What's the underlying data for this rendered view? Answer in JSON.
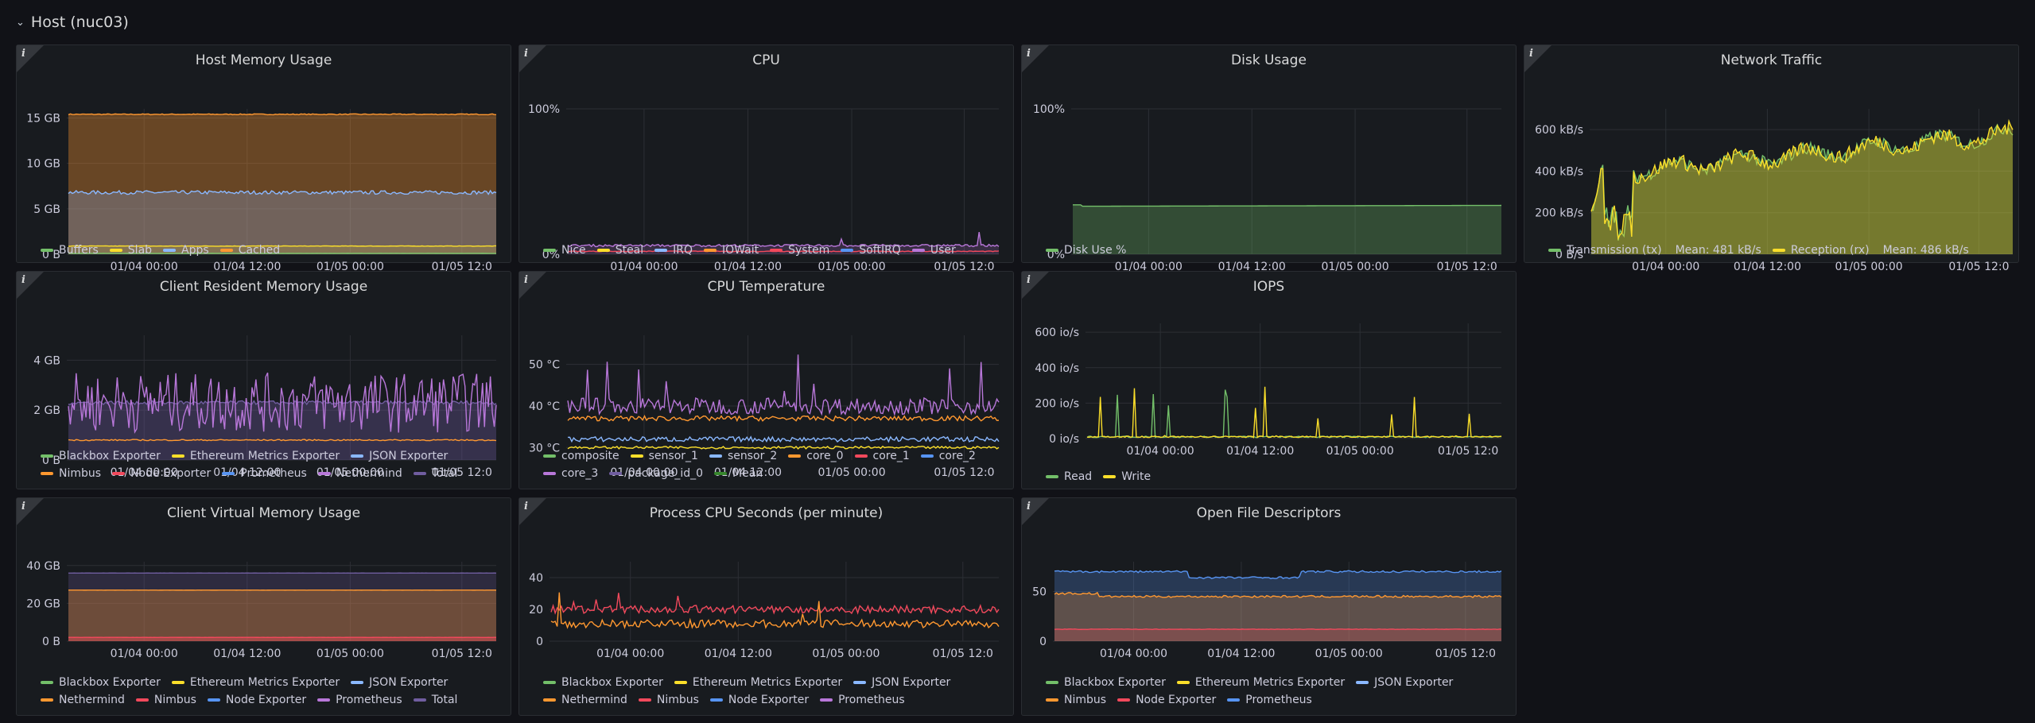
{
  "row": {
    "title": "Host (nuc03)"
  },
  "colors": {
    "green": "#73bf69",
    "yellow": "#fade2a",
    "blue": "#8ab8ff",
    "orange": "#ff9830",
    "red": "#f2495c",
    "blue2": "#5794f2",
    "purple": "#b877d9",
    "darkpurple": "#705da0"
  },
  "panels": [
    {
      "id": "host-memory",
      "title": "Host Memory Usage",
      "icon": "info-icon",
      "chart_data": {
        "type": "area",
        "x_ticks": [
          "01/04 00:00",
          "01/04 12:00",
          "01/05 00:00",
          "01/05 12:0"
        ],
        "y_ticks": [
          "0 B",
          "5 GB",
          "10 GB",
          "15 GB"
        ],
        "ylim": [
          0,
          16
        ],
        "series": [
          {
            "name": "Buffers",
            "color": "#73bf69",
            "level": 0.1
          },
          {
            "name": "Slab",
            "color": "#fade2a",
            "level": 0.9
          },
          {
            "name": "Apps",
            "color": "#8ab8ff",
            "level": 6.8
          },
          {
            "name": "Cached",
            "color": "#ff9830",
            "level": 15.4
          }
        ]
      },
      "legend": [
        {
          "label": "Buffers",
          "color": "#73bf69"
        },
        {
          "label": "Slab",
          "color": "#fade2a"
        },
        {
          "label": "Apps",
          "color": "#8ab8ff"
        },
        {
          "label": "Cached",
          "color": "#ff9830"
        }
      ]
    },
    {
      "id": "cpu",
      "title": "CPU",
      "icon": "info-icon",
      "chart_data": {
        "type": "area",
        "x_ticks": [
          "01/04 00:00",
          "01/04 12:00",
          "01/05 00:00",
          "01/05 12:0"
        ],
        "y_ticks": [
          "0%",
          "100%"
        ],
        "ylim": [
          0,
          100
        ],
        "series": [
          {
            "name": "User",
            "color": "#b877d9",
            "level": 6
          },
          {
            "name": "System",
            "color": "#f2495c",
            "level": 2
          }
        ]
      },
      "legend": [
        {
          "label": "Nice",
          "color": "#73bf69"
        },
        {
          "label": "Steal",
          "color": "#fade2a"
        },
        {
          "label": "IRQ",
          "color": "#8ab8ff"
        },
        {
          "label": "IOWait",
          "color": "#ff9830"
        },
        {
          "label": "System",
          "color": "#f2495c"
        },
        {
          "label": "SoftIRQ",
          "color": "#5794f2"
        },
        {
          "label": "User",
          "color": "#b877d9"
        }
      ]
    },
    {
      "id": "disk-usage",
      "title": "Disk Usage",
      "icon": "info-icon",
      "chart_data": {
        "type": "area",
        "x_ticks": [
          "01/04 00:00",
          "01/04 12:00",
          "01/05 00:00",
          "01/05 12:0"
        ],
        "y_ticks": [
          "0%",
          "100%"
        ],
        "ylim": [
          0,
          100
        ],
        "series": [
          {
            "name": "Disk Use %",
            "color": "#73bf69",
            "level": 33
          }
        ]
      },
      "legend": [
        {
          "label": "Disk Use %",
          "color": "#73bf69"
        }
      ]
    },
    {
      "id": "network-traffic",
      "title": "Network Traffic",
      "icon": "info-icon",
      "chart_data": {
        "type": "area",
        "x_ticks": [
          "01/04 00:00",
          "01/04 12:00",
          "01/05 00:00",
          "01/05 12:0"
        ],
        "y_ticks": [
          "0 B/s",
          "200 kB/s",
          "400 kB/s",
          "600 kB/s"
        ],
        "ylim": [
          0,
          700
        ],
        "series": [
          {
            "name": "Transmission (tx)",
            "color": "#73bf69",
            "mean": "481 kB/s"
          },
          {
            "name": "Reception (rx)",
            "color": "#fade2a",
            "mean": "486 kB/s"
          }
        ]
      },
      "legend": [
        {
          "label": "Transmission (tx)",
          "color": "#73bf69",
          "extra": "Mean: 481 kB/s"
        },
        {
          "label": "Reception (rx)",
          "color": "#fade2a",
          "extra": "Mean: 486 kB/s"
        }
      ]
    },
    {
      "id": "client-resident-memory",
      "title": "Client Resident Memory Usage",
      "icon": "info-icon",
      "chart_data": {
        "type": "line",
        "x_ticks": [
          "01/04 00:00",
          "01/04 12:00",
          "01/05 00:00",
          "01/05 12:0"
        ],
        "y_ticks": [
          "0 B",
          "2 GB",
          "4 GB"
        ],
        "ylim": [
          0,
          5
        ],
        "series": [
          {
            "name": "Total",
            "color": "#705da0",
            "level": 2.3
          },
          {
            "name": "Nethermind",
            "color": "#b877d9",
            "level": 2.3
          },
          {
            "name": "Nimbus",
            "color": "#ff9830",
            "level": 0.8
          }
        ]
      },
      "legend": [
        {
          "label": "Blackbox Exporter",
          "color": "#73bf69"
        },
        {
          "label": "Ethereum Metrics Exporter",
          "color": "#fade2a"
        },
        {
          "label": "JSON Exporter",
          "color": "#8ab8ff"
        },
        {
          "label": "Nimbus",
          "color": "#ff9830"
        },
        {
          "label": "Node Exporter",
          "color": "#f2495c"
        },
        {
          "label": "Prometheus",
          "color": "#5794f2"
        },
        {
          "label": "Nethermind",
          "color": "#b877d9"
        },
        {
          "label": "Total",
          "color": "#705da0"
        }
      ]
    },
    {
      "id": "cpu-temperature",
      "title": "CPU Temperature",
      "icon": "info-icon",
      "chart_data": {
        "type": "line",
        "x_ticks": [
          "01/04 00:00",
          "01/04 12:00",
          "01/05 00:00",
          "01/05 12:0"
        ],
        "y_ticks": [
          "30 °C",
          "40 °C",
          "50 °C"
        ],
        "ylim": [
          27,
          57
        ],
        "series": [
          {
            "name": "core_3",
            "color": "#b877d9",
            "level": 40
          },
          {
            "name": "core_0",
            "color": "#ff9830",
            "level": 37
          },
          {
            "name": "sensor_2",
            "color": "#8ab8ff",
            "level": 32
          },
          {
            "name": "sensor_1",
            "color": "#fade2a",
            "level": 30
          }
        ]
      },
      "legend": [
        {
          "label": "composite",
          "color": "#73bf69"
        },
        {
          "label": "sensor_1",
          "color": "#fade2a"
        },
        {
          "label": "sensor_2",
          "color": "#8ab8ff"
        },
        {
          "label": "core_0",
          "color": "#ff9830"
        },
        {
          "label": "core_1",
          "color": "#f2495c"
        },
        {
          "label": "core_2",
          "color": "#5794f2"
        },
        {
          "label": "core_3",
          "color": "#b877d9"
        },
        {
          "label": "package_id_0",
          "color": "#705da0"
        },
        {
          "label": "Mean",
          "color": "#37872d"
        }
      ]
    },
    {
      "id": "iops",
      "title": "IOPS",
      "icon": "info-icon",
      "chart_data": {
        "type": "line",
        "x_ticks": [
          "01/04 00:00",
          "01/04 12:00",
          "01/05 00:00",
          "01/05 12:0"
        ],
        "y_ticks": [
          "0 io/s",
          "200 io/s",
          "400 io/s",
          "600 io/s"
        ],
        "ylim": [
          0,
          650
        ],
        "series": [
          {
            "name": "Read",
            "color": "#73bf69",
            "level": 10
          },
          {
            "name": "Write",
            "color": "#fade2a",
            "level": 10
          }
        ]
      },
      "legend": [
        {
          "label": "Read",
          "color": "#73bf69"
        },
        {
          "label": "Write",
          "color": "#fade2a"
        }
      ]
    },
    {
      "id": "client-virtual-memory",
      "title": "Client Virtual Memory Usage",
      "icon": "info-icon",
      "chart_data": {
        "type": "area",
        "x_ticks": [
          "01/04 00:00",
          "01/04 12:00",
          "01/05 00:00",
          "01/05 12:0"
        ],
        "y_ticks": [
          "0 B",
          "20 GB",
          "40 GB"
        ],
        "ylim": [
          0,
          42
        ],
        "series": [
          {
            "name": "Total",
            "color": "#705da0",
            "level": 36
          },
          {
            "name": "Nethermind",
            "color": "#ff9830",
            "level": 27
          },
          {
            "name": "Nimbus",
            "color": "#f2495c",
            "level": 2
          }
        ]
      },
      "legend": [
        {
          "label": "Blackbox Exporter",
          "color": "#73bf69"
        },
        {
          "label": "Ethereum Metrics Exporter",
          "color": "#fade2a"
        },
        {
          "label": "JSON Exporter",
          "color": "#8ab8ff"
        },
        {
          "label": "Nethermind",
          "color": "#ff9830"
        },
        {
          "label": "Nimbus",
          "color": "#f2495c"
        },
        {
          "label": "Node Exporter",
          "color": "#5794f2"
        },
        {
          "label": "Prometheus",
          "color": "#b877d9"
        },
        {
          "label": "Total",
          "color": "#705da0"
        }
      ]
    },
    {
      "id": "process-cpu-seconds",
      "title": "Process CPU Seconds (per minute)",
      "icon": "info-icon",
      "chart_data": {
        "type": "line",
        "x_ticks": [
          "01/04 00:00",
          "01/04 12:00",
          "01/05 00:00",
          "01/05 12:0"
        ],
        "y_ticks": [
          "0",
          "20",
          "40"
        ],
        "ylim": [
          0,
          50
        ],
        "series": [
          {
            "name": "Nimbus",
            "color": "#f2495c",
            "level": 20
          },
          {
            "name": "Nethermind",
            "color": "#ff9830",
            "level": 11
          }
        ]
      },
      "legend": [
        {
          "label": "Blackbox Exporter",
          "color": "#73bf69"
        },
        {
          "label": "Ethereum Metrics Exporter",
          "color": "#fade2a"
        },
        {
          "label": "JSON Exporter",
          "color": "#8ab8ff"
        },
        {
          "label": "Nethermind",
          "color": "#ff9830"
        },
        {
          "label": "Nimbus",
          "color": "#f2495c"
        },
        {
          "label": "Node Exporter",
          "color": "#5794f2"
        },
        {
          "label": "Prometheus",
          "color": "#b877d9"
        }
      ]
    },
    {
      "id": "open-file-descriptors",
      "title": "Open File Descriptors",
      "icon": "info-icon",
      "chart_data": {
        "type": "area",
        "x_ticks": [
          "01/04 00:00",
          "01/04 12:00",
          "01/05 00:00",
          "01/05 12:0"
        ],
        "y_ticks": [
          "0",
          "50"
        ],
        "ylim": [
          0,
          80
        ],
        "series": [
          {
            "name": "Prometheus",
            "color": "#5794f2",
            "level": 70
          },
          {
            "name": "Nimbus",
            "color": "#ff9830",
            "level": 45
          },
          {
            "name": "Node Exporter",
            "color": "#f2495c",
            "level": 12
          }
        ]
      },
      "legend": [
        {
          "label": "Blackbox Exporter",
          "color": "#73bf69"
        },
        {
          "label": "Ethereum Metrics Exporter",
          "color": "#fade2a"
        },
        {
          "label": "JSON Exporter",
          "color": "#8ab8ff"
        },
        {
          "label": "Nimbus",
          "color": "#ff9830"
        },
        {
          "label": "Node Exporter",
          "color": "#f2495c"
        },
        {
          "label": "Prometheus",
          "color": "#5794f2"
        }
      ]
    }
  ]
}
